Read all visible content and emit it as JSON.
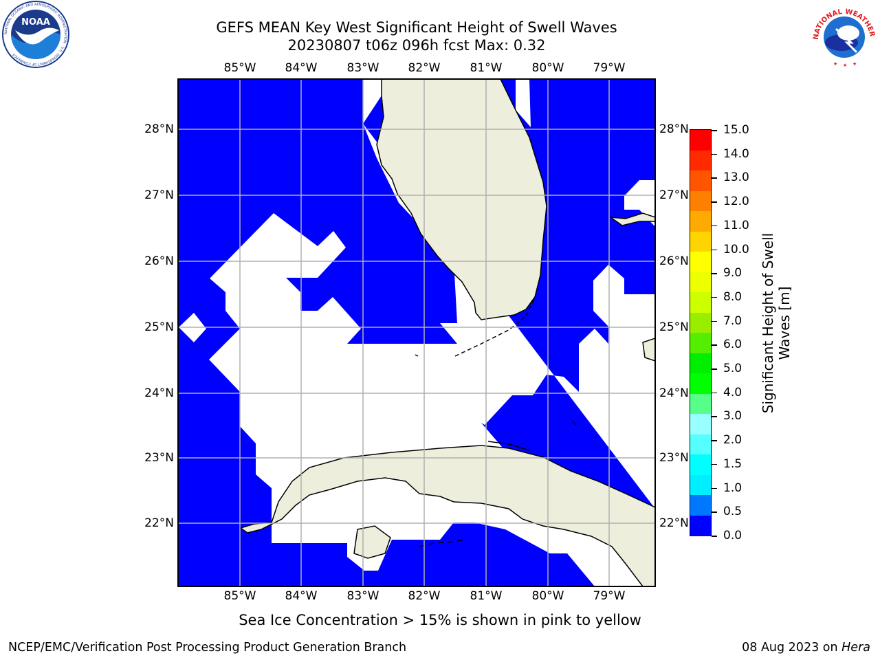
{
  "title_line1": "GEFS MEAN Key West Significant Height of Swell Waves",
  "title_line2": "20230807 t06z 096h fcst   Max: 0.32",
  "logos": {
    "noaa_text": "NOAA",
    "noaa_ring_text": "NATIONAL OCEANIC AND ATMOSPHERIC ADMINISTRATION · U.S. DEPARTMENT OF COMMERCE",
    "nws_ring_text": "NATIONAL WEATHER SERVICE"
  },
  "map": {
    "lon_labels": [
      "85°W",
      "84°W",
      "83°W",
      "82°W",
      "81°W",
      "80°W",
      "79°W"
    ],
    "lat_labels": [
      "28°N",
      "27°N",
      "26°N",
      "25°N",
      "24°N",
      "23°N",
      "22°N"
    ],
    "colors": {
      "wave_field": "#0000ff",
      "land": "#eeeedd",
      "grid": "#b0b0b0",
      "coast": "#000000"
    }
  },
  "colorbar": {
    "label": "Significant Height of Swell Waves [m]",
    "label_line1": "Significant Height of Swell",
    "label_line2": "Waves [m]",
    "tick_labels": [
      "15.0",
      "14.0",
      "13.0",
      "12.0",
      "11.0",
      "10.0",
      "9.0",
      "8.0",
      "7.0",
      "6.0",
      "5.0",
      "4.0",
      "3.0",
      "2.0",
      "1.5",
      "1.0",
      "0.5",
      "0.0"
    ],
    "colors": [
      "#ff0000",
      "#ff2a00",
      "#ff5500",
      "#ff7f00",
      "#ffaa00",
      "#ffd400",
      "#ffff00",
      "#eeff00",
      "#ccff00",
      "#99ee00",
      "#55ee00",
      "#00ee00",
      "#00ff00",
      "#55ff88",
      "#99ffff",
      "#55ffff",
      "#00ffff",
      "#00eeff",
      "#0077ff",
      "#0000ff"
    ]
  },
  "ice_note": "Sea Ice Concentration > 15% is shown in pink to yellow",
  "footer": {
    "left": "NCEP/EMC/Verification Post Processing Product Generation Branch",
    "right_prefix": "08 Aug 2023 on ",
    "right_machine": "Hera"
  }
}
